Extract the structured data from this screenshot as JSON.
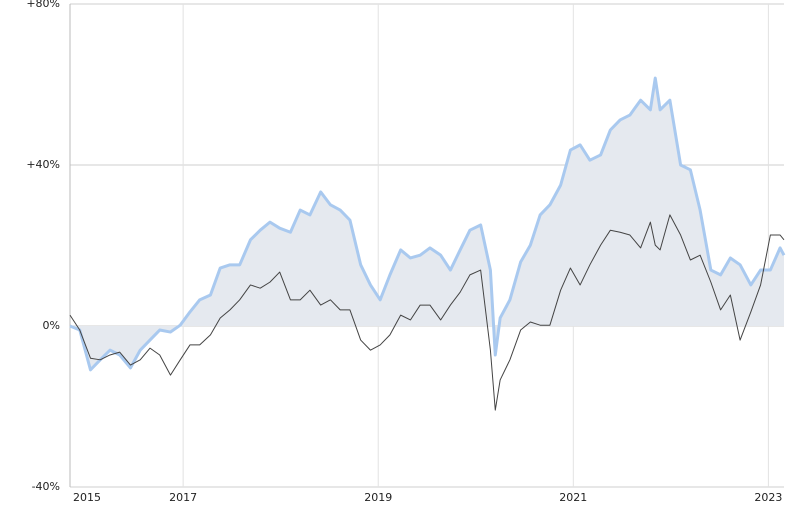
{
  "chart_data": {
    "type": "line",
    "x": [
      2015.84,
      2015.94,
      2016.05,
      2016.15,
      2016.25,
      2016.35,
      2016.46,
      2016.56,
      2016.66,
      2016.76,
      2016.87,
      2016.97,
      2017.07,
      2017.17,
      2017.28,
      2017.38,
      2017.48,
      2017.58,
      2017.69,
      2017.79,
      2017.89,
      2017.99,
      2018.1,
      2018.2,
      2018.3,
      2018.41,
      2018.51,
      2018.61,
      2018.71,
      2018.82,
      2018.92,
      2019.02,
      2019.12,
      2019.23,
      2019.33,
      2019.43,
      2019.53,
      2019.64,
      2019.74,
      2019.84,
      2019.94,
      2020.05,
      2020.15,
      2020.2,
      2020.25,
      2020.35,
      2020.46,
      2020.56,
      2020.66,
      2020.76,
      2020.87,
      2020.97,
      2021.07,
      2021.17,
      2021.28,
      2021.38,
      2021.48,
      2021.58,
      2021.69,
      2021.79,
      2021.84,
      2021.89,
      2021.99,
      2022.1,
      2022.2,
      2022.3,
      2022.41,
      2022.51,
      2022.61,
      2022.71,
      2022.82,
      2022.92,
      2023.02,
      2023.12,
      2023.16
    ],
    "series": [
      {
        "color": "#a9c9ef",
        "fill": "#e5e9ef",
        "width": 3,
        "values": [
          0,
          -1,
          -10.9,
          -8.4,
          -6,
          -7.2,
          -10.4,
          -6,
          -3.5,
          -1,
          -1.5,
          0.2,
          3.5,
          6.5,
          7.7,
          14.4,
          15.2,
          15.2,
          21.4,
          23.8,
          25.8,
          24.3,
          23.3,
          28.8,
          27.6,
          33.3,
          30.1,
          28.8,
          26.3,
          15.2,
          10.2,
          6.5,
          12.7,
          18.9,
          16.9,
          17.6,
          19.4,
          17.6,
          13.9,
          18.9,
          23.8,
          25.1,
          13.9,
          -7.2,
          2,
          6.5,
          15.9,
          20.1,
          27.6,
          30.1,
          35,
          43.7,
          45,
          41.2,
          42.5,
          48.7,
          51.2,
          52.4,
          56.1,
          53.7,
          61.6,
          53.7,
          56.1,
          40,
          38.8,
          28.8,
          13.9,
          12.7,
          16.9,
          15.2,
          10.2,
          13.9,
          13.9,
          19.4,
          17.6
        ]
      },
      {
        "color": "#444444",
        "width": 1,
        "values": [
          2.7,
          -1,
          -8,
          -8.4,
          -7.2,
          -6.5,
          -9.7,
          -8.4,
          -5.5,
          -7.2,
          -12.2,
          -8.4,
          -4.7,
          -4.7,
          -2.2,
          2,
          4,
          6.5,
          10.2,
          9.4,
          10.9,
          13.4,
          6.5,
          6.5,
          8.9,
          5.2,
          6.5,
          4,
          4,
          -3.5,
          -6,
          -4.7,
          -2.2,
          2.7,
          1.5,
          5.2,
          5.2,
          1.5,
          5.2,
          8.4,
          12.7,
          13.9,
          -6,
          -20.9,
          -13.4,
          -8.4,
          -1,
          1,
          0.2,
          0.2,
          8.9,
          14.4,
          10.2,
          15.2,
          20.1,
          23.8,
          23.3,
          22.6,
          19.4,
          25.8,
          20.1,
          18.9,
          27.6,
          22.6,
          16.4,
          17.6,
          10.9,
          4,
          7.7,
          -3.5,
          3.5,
          10.2,
          22.6,
          22.6,
          21.4
        ]
      }
    ],
    "xlim": [
      2015.84,
      2023.16
    ],
    "xticks": [
      {
        "value": 2015.84,
        "label": "2015"
      },
      2017,
      2019,
      2021,
      2023
    ],
    "ylim": [
      -40,
      80
    ],
    "yticks": [
      {
        "value": -40,
        "label": "-40%"
      },
      {
        "value": 0,
        "label": "0%"
      },
      {
        "value": 40,
        "label": "+40%"
      },
      {
        "value": 80,
        "label": "+80%"
      }
    ],
    "grid": true
  }
}
